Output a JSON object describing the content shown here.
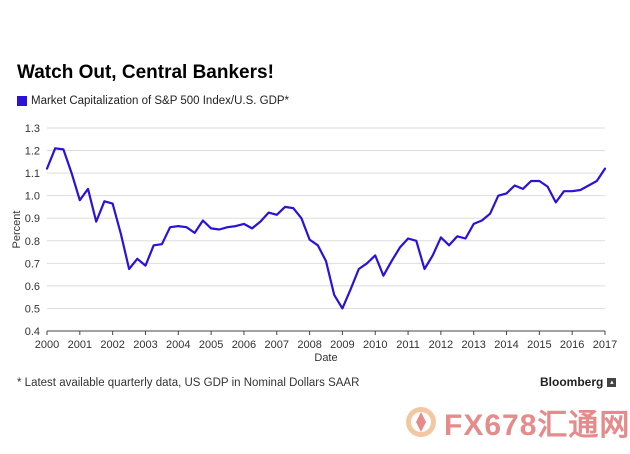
{
  "chart_data": {
    "type": "line",
    "title": "Watch Out, Central Bankers!",
    "xlabel": "Date",
    "ylabel": "Percent",
    "xlim": [
      2000,
      2017
    ],
    "ylim": [
      0.4,
      1.3
    ],
    "yticks": [
      "0.4",
      "0.5",
      "0.6",
      "0.7",
      "0.8",
      "0.9",
      "1.0",
      "1.1",
      "1.2",
      "1.3"
    ],
    "xticks": [
      "2000",
      "2001",
      "2002",
      "2003",
      "2004",
      "2005",
      "2006",
      "2007",
      "2008",
      "2009",
      "2010",
      "2011",
      "2012",
      "2013",
      "2014",
      "2015",
      "2016",
      "2017"
    ],
    "grid": "horizontal",
    "legend_position": "top-left",
    "series": [
      {
        "name": "Market Capitalization of S&P 500 Index/U.S. GDP*",
        "color": "#2a12d8",
        "x": [
          2000.0,
          2000.25,
          2000.5,
          2000.75,
          2001.0,
          2001.25,
          2001.5,
          2001.75,
          2002.0,
          2002.25,
          2002.5,
          2002.75,
          2003.0,
          2003.25,
          2003.5,
          2003.75,
          2004.0,
          2004.25,
          2004.5,
          2004.75,
          2005.0,
          2005.25,
          2005.5,
          2005.75,
          2006.0,
          2006.25,
          2006.5,
          2006.75,
          2007.0,
          2007.25,
          2007.5,
          2007.75,
          2008.0,
          2008.25,
          2008.5,
          2008.75,
          2009.0,
          2009.25,
          2009.5,
          2009.75,
          2010.0,
          2010.25,
          2010.5,
          2010.75,
          2011.0,
          2011.25,
          2011.5,
          2011.75,
          2012.0,
          2012.25,
          2012.5,
          2012.75,
          2013.0,
          2013.25,
          2013.5,
          2013.75,
          2014.0,
          2014.25,
          2014.5,
          2014.75,
          2015.0,
          2015.25,
          2015.5,
          2015.75,
          2016.0,
          2016.25,
          2016.5,
          2016.75,
          2017.0
        ],
        "values": [
          1.12,
          1.21,
          1.205,
          1.1,
          0.98,
          1.03,
          0.885,
          0.975,
          0.965,
          0.83,
          0.675,
          0.72,
          0.69,
          0.78,
          0.785,
          0.86,
          0.865,
          0.86,
          0.835,
          0.89,
          0.855,
          0.85,
          0.86,
          0.865,
          0.875,
          0.855,
          0.885,
          0.925,
          0.915,
          0.95,
          0.945,
          0.9,
          0.805,
          0.78,
          0.71,
          0.56,
          0.5,
          0.585,
          0.675,
          0.7,
          0.735,
          0.645,
          0.71,
          0.77,
          0.81,
          0.8,
          0.675,
          0.735,
          0.815,
          0.78,
          0.82,
          0.81,
          0.875,
          0.89,
          0.92,
          1.0,
          1.01,
          1.045,
          1.03,
          1.065,
          1.065,
          1.04,
          0.97,
          1.02,
          1.02,
          1.025,
          1.045,
          1.065,
          1.12
        ]
      }
    ]
  },
  "footnote": "* Latest available quarterly data, US GDP in Nominal Dollars SAAR",
  "brand": {
    "name": "Bloomberg",
    "icon": "bloomberg-logo-icon"
  },
  "watermark": {
    "text": "FX678汇通网",
    "icon": "fx678-logo-icon",
    "color": "#e58b8b"
  }
}
